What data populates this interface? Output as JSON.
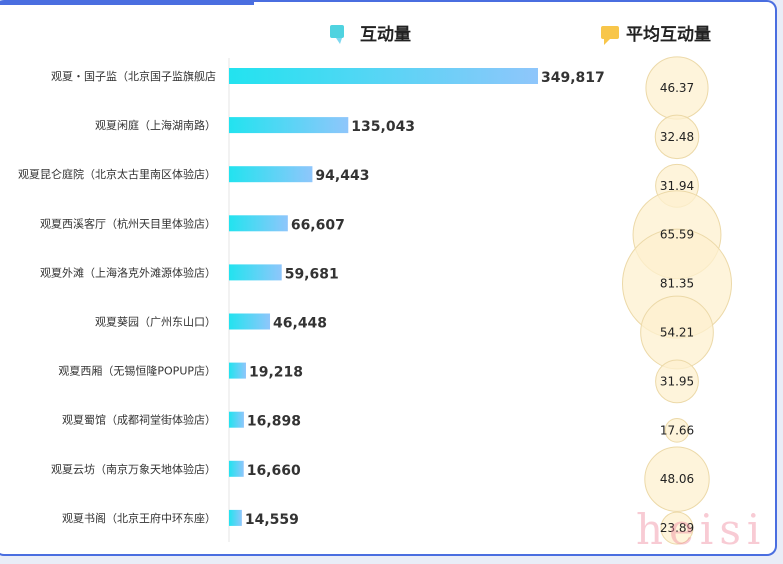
{
  "chart_data": {
    "type": "bar",
    "title": "",
    "series_headers": {
      "bar": "互动量",
      "bubble": "平均互动量"
    },
    "header_icons": {
      "bar": "chat-bubble-icon",
      "bubble": "comment-icon"
    },
    "categories": [
      "观夏・国子监（北京国子监旗舰店",
      "观夏闲庭（上海湖南路）",
      "观夏昆仑庭院（北京太古里南区体验店）",
      "观夏西溪客厅（杭州天目里体验店）",
      "观夏外滩（上海洛克外滩源体验店）",
      "观夏葵园（广州东山口）",
      "观夏西厢（无锡恒隆POPUP店）",
      "观夏蜀馆（成都祠堂街体验店）",
      "观夏云坊（南京万象天地体验店）",
      "观夏书阁（北京王府中环东座）"
    ],
    "series": [
      {
        "name": "互动量",
        "type": "bar",
        "values": [
          349817,
          135043,
          94443,
          66607,
          59681,
          46448,
          19218,
          16898,
          16660,
          14559
        ],
        "labels": [
          "349,817",
          "135,043",
          "94,443",
          "66,607",
          "59,681",
          "46,448",
          "19,218",
          "16,898",
          "16,660",
          "14,559"
        ]
      },
      {
        "name": "平均互动量",
        "type": "bubble",
        "values": [
          46.37,
          32.48,
          31.94,
          65.59,
          81.35,
          54.21,
          31.95,
          17.66,
          48.06,
          23.89
        ],
        "labels": [
          "46.37",
          "32.48",
          "31.94",
          "65.59",
          "81.35",
          "54.21",
          "31.95",
          "17.66",
          "48.06",
          "23.89"
        ]
      }
    ],
    "colors": {
      "bar_start": "#22e3ef",
      "bar_end": "#8fc6fb",
      "bubble_fill": "#fdf0cf",
      "bubble_stroke": "#ecd9a8"
    },
    "watermark": "heisi"
  }
}
